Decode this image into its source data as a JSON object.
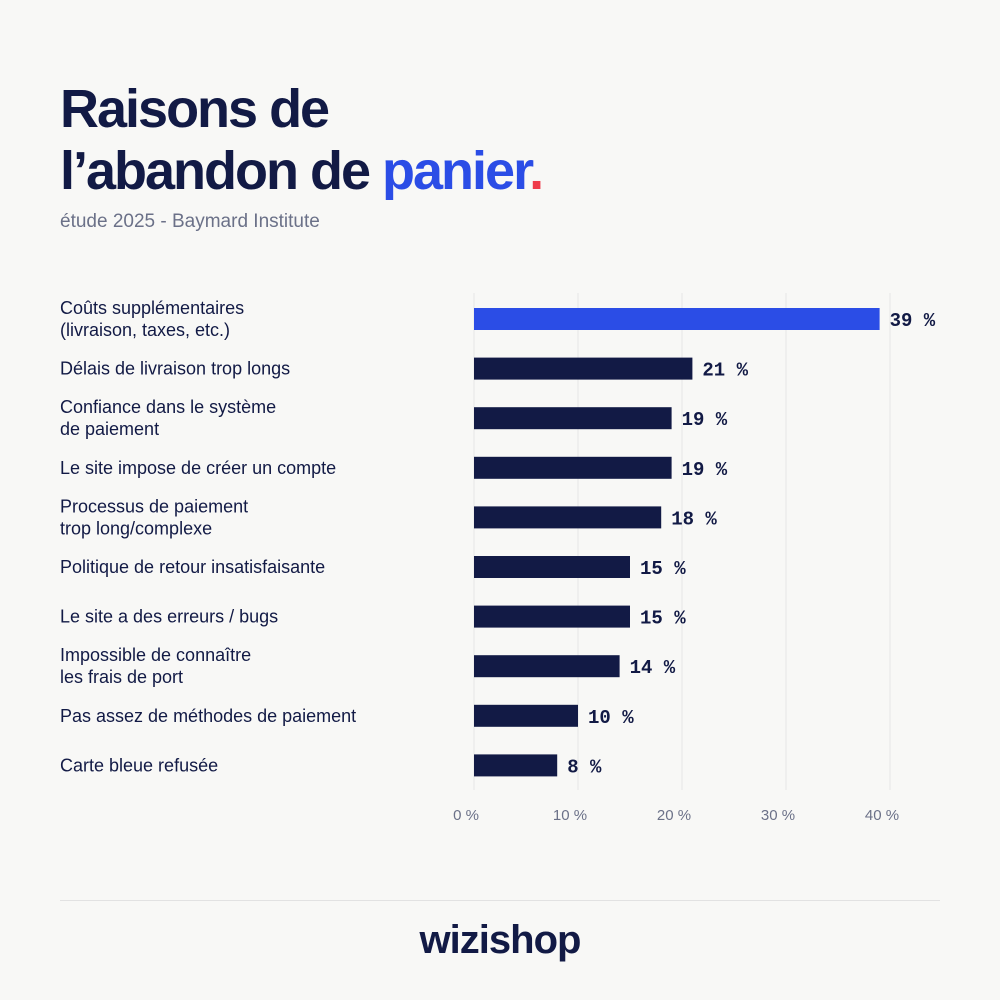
{
  "header": {
    "title_line1": "Raisons de",
    "title_line2_prefix": "l’abandon de ",
    "title_accent": "panier",
    "title_dot": ".",
    "subtitle": "étude 2025 - Baymard Institute"
  },
  "chart_data": {
    "type": "bar",
    "orientation": "horizontal",
    "categories": [
      [
        "Coûts supplémentaires",
        "(livraison, taxes, etc.)"
      ],
      [
        "Délais de livraison trop longs"
      ],
      [
        "Confiance dans le système",
        "de paiement"
      ],
      [
        "Le site impose de créer un compte"
      ],
      [
        "Processus de paiement",
        "trop long/complexe"
      ],
      [
        "Politique de retour insatisfaisante"
      ],
      [
        "Le site a des erreurs / bugs"
      ],
      [
        "Impossible de connaître",
        "les frais de port"
      ],
      [
        "Pas assez de méthodes de paiement"
      ],
      [
        "Carte bleue refusée"
      ]
    ],
    "values": [
      39,
      21,
      19,
      19,
      18,
      15,
      15,
      14,
      10,
      8
    ],
    "value_labels": [
      "39 %",
      "21 %",
      "19 %",
      "19 %",
      "18 %",
      "15 %",
      "15 %",
      "14 %",
      "10 %",
      "8 %"
    ],
    "xticks": [
      0,
      10,
      20,
      30,
      40
    ],
    "xtick_labels": [
      "0 %",
      "10 %",
      "20 %",
      "30 %",
      "40 %"
    ],
    "xlim": [
      0,
      40
    ],
    "highlight_index": 0,
    "colors": {
      "highlight": "#2b4de6",
      "default": "#121a45",
      "grid": "#e6e6e6"
    },
    "grid": true
  },
  "footer": {
    "logo": "wizishop"
  }
}
